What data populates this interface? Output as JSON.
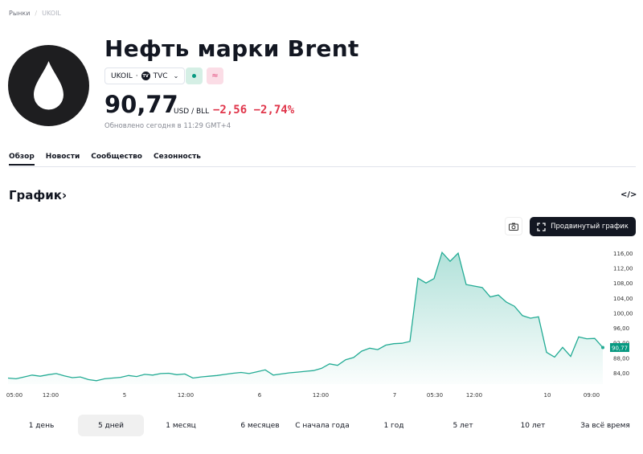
{
  "breadcrumb": {
    "root": "Рынки",
    "current": "UKOIL"
  },
  "header": {
    "title": "Нефть марки Brent",
    "symbol": "UKOIL",
    "exchange": "TVC",
    "exchange_logo": "TV",
    "badge_market": "market-open-dot",
    "badge_pair": "≈",
    "price": "90,77",
    "unit": "USD / BLL",
    "change": "−2,56",
    "change_pct": "−2,74%",
    "updated": "Обновлено сегодня в 11:29 GMT+4"
  },
  "tabs": [
    "Обзор",
    "Новости",
    "Сообщество",
    "Сезонность"
  ],
  "section": {
    "title": "График",
    "chevron": "›",
    "embed": "</>"
  },
  "toolbar": {
    "advanced": "Продвинутый график"
  },
  "colors": {
    "line": "#22ab94",
    "down": "#e0364b",
    "label": "#089981"
  },
  "chart_data": {
    "type": "area",
    "values": [
      82.6,
      82.4,
      82.9,
      83.4,
      83.1,
      83.5,
      83.8,
      83.2,
      82.7,
      82.9,
      82.2,
      81.9,
      82.4,
      82.6,
      82.8,
      83.3,
      83.0,
      83.6,
      83.4,
      83.8,
      83.9,
      83.5,
      83.7,
      82.6,
      82.9,
      83.1,
      83.3,
      83.6,
      83.9,
      84.1,
      83.8,
      84.3,
      84.8,
      83.4,
      83.7,
      84.0,
      84.2,
      84.4,
      84.6,
      85.2,
      86.4,
      86.0,
      87.5,
      88.1,
      89.8,
      90.6,
      90.2,
      91.4,
      91.8,
      91.9,
      92.4,
      109.3,
      108.0,
      109.2,
      116.2,
      113.8,
      116.0,
      107.6,
      107.2,
      106.8,
      104.3,
      104.8,
      102.9,
      101.8,
      99.3,
      98.6,
      99.0,
      89.5,
      88.2,
      90.8,
      88.4,
      93.6,
      93.1,
      93.2,
      90.77
    ],
    "x_ticks": [
      {
        "label": "05:00",
        "index": 0.8
      },
      {
        "label": "12:00",
        "index": 5.3
      },
      {
        "label": "5",
        "index": 14.5
      },
      {
        "label": "12:00",
        "index": 22.1
      },
      {
        "label": "6",
        "index": 31.3
      },
      {
        "label": "12:00",
        "index": 38.9
      },
      {
        "label": "7",
        "index": 48.1
      },
      {
        "label": "05:30",
        "index": 53.1
      },
      {
        "label": "12:00",
        "index": 58
      },
      {
        "label": "10",
        "index": 67.1
      },
      {
        "label": "09:00",
        "index": 72.6
      }
    ],
    "y_ticks": [
      "116,00",
      "112,00",
      "108,00",
      "104,00",
      "100,00",
      "96,00",
      "92,00",
      "88,00",
      "84,00"
    ],
    "y_tick_values": [
      116,
      112,
      108,
      104,
      100,
      96,
      92,
      88,
      84
    ],
    "last_label": "90,77",
    "grid": false
  },
  "ranges": [
    "1 день",
    "5 дней",
    "1 месяц",
    "6 месяцев",
    "С начала года",
    "1 год",
    "5 лет",
    "10 лет",
    "За всё время"
  ],
  "selected_range": 1
}
